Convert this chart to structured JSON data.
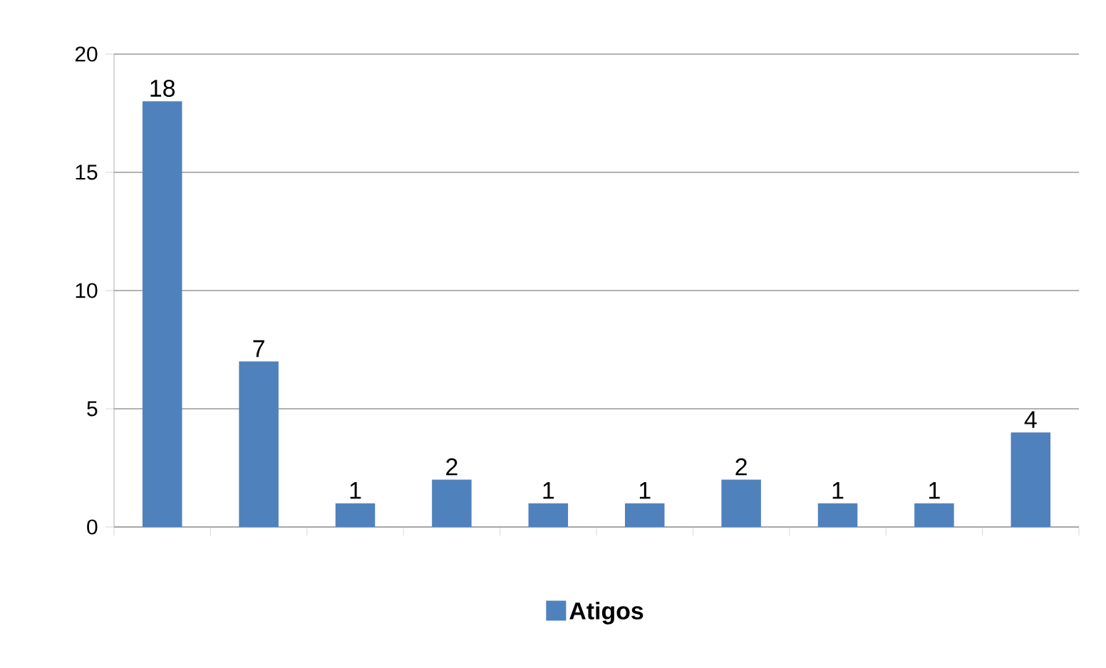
{
  "chart_data": {
    "type": "bar",
    "categories": [
      null,
      null,
      null,
      null,
      null,
      null,
      null,
      null,
      null,
      null
    ],
    "series": [
      {
        "name": "Atigos",
        "color": "#4f81bd",
        "values": [
          18,
          7,
          1,
          2,
          1,
          1,
          2,
          1,
          1,
          4
        ]
      }
    ],
    "ylim": [
      0,
      20
    ],
    "yticks": [
      0,
      5,
      10,
      15,
      20
    ],
    "grid": "y",
    "legend": "bottom",
    "data_labels": true
  }
}
